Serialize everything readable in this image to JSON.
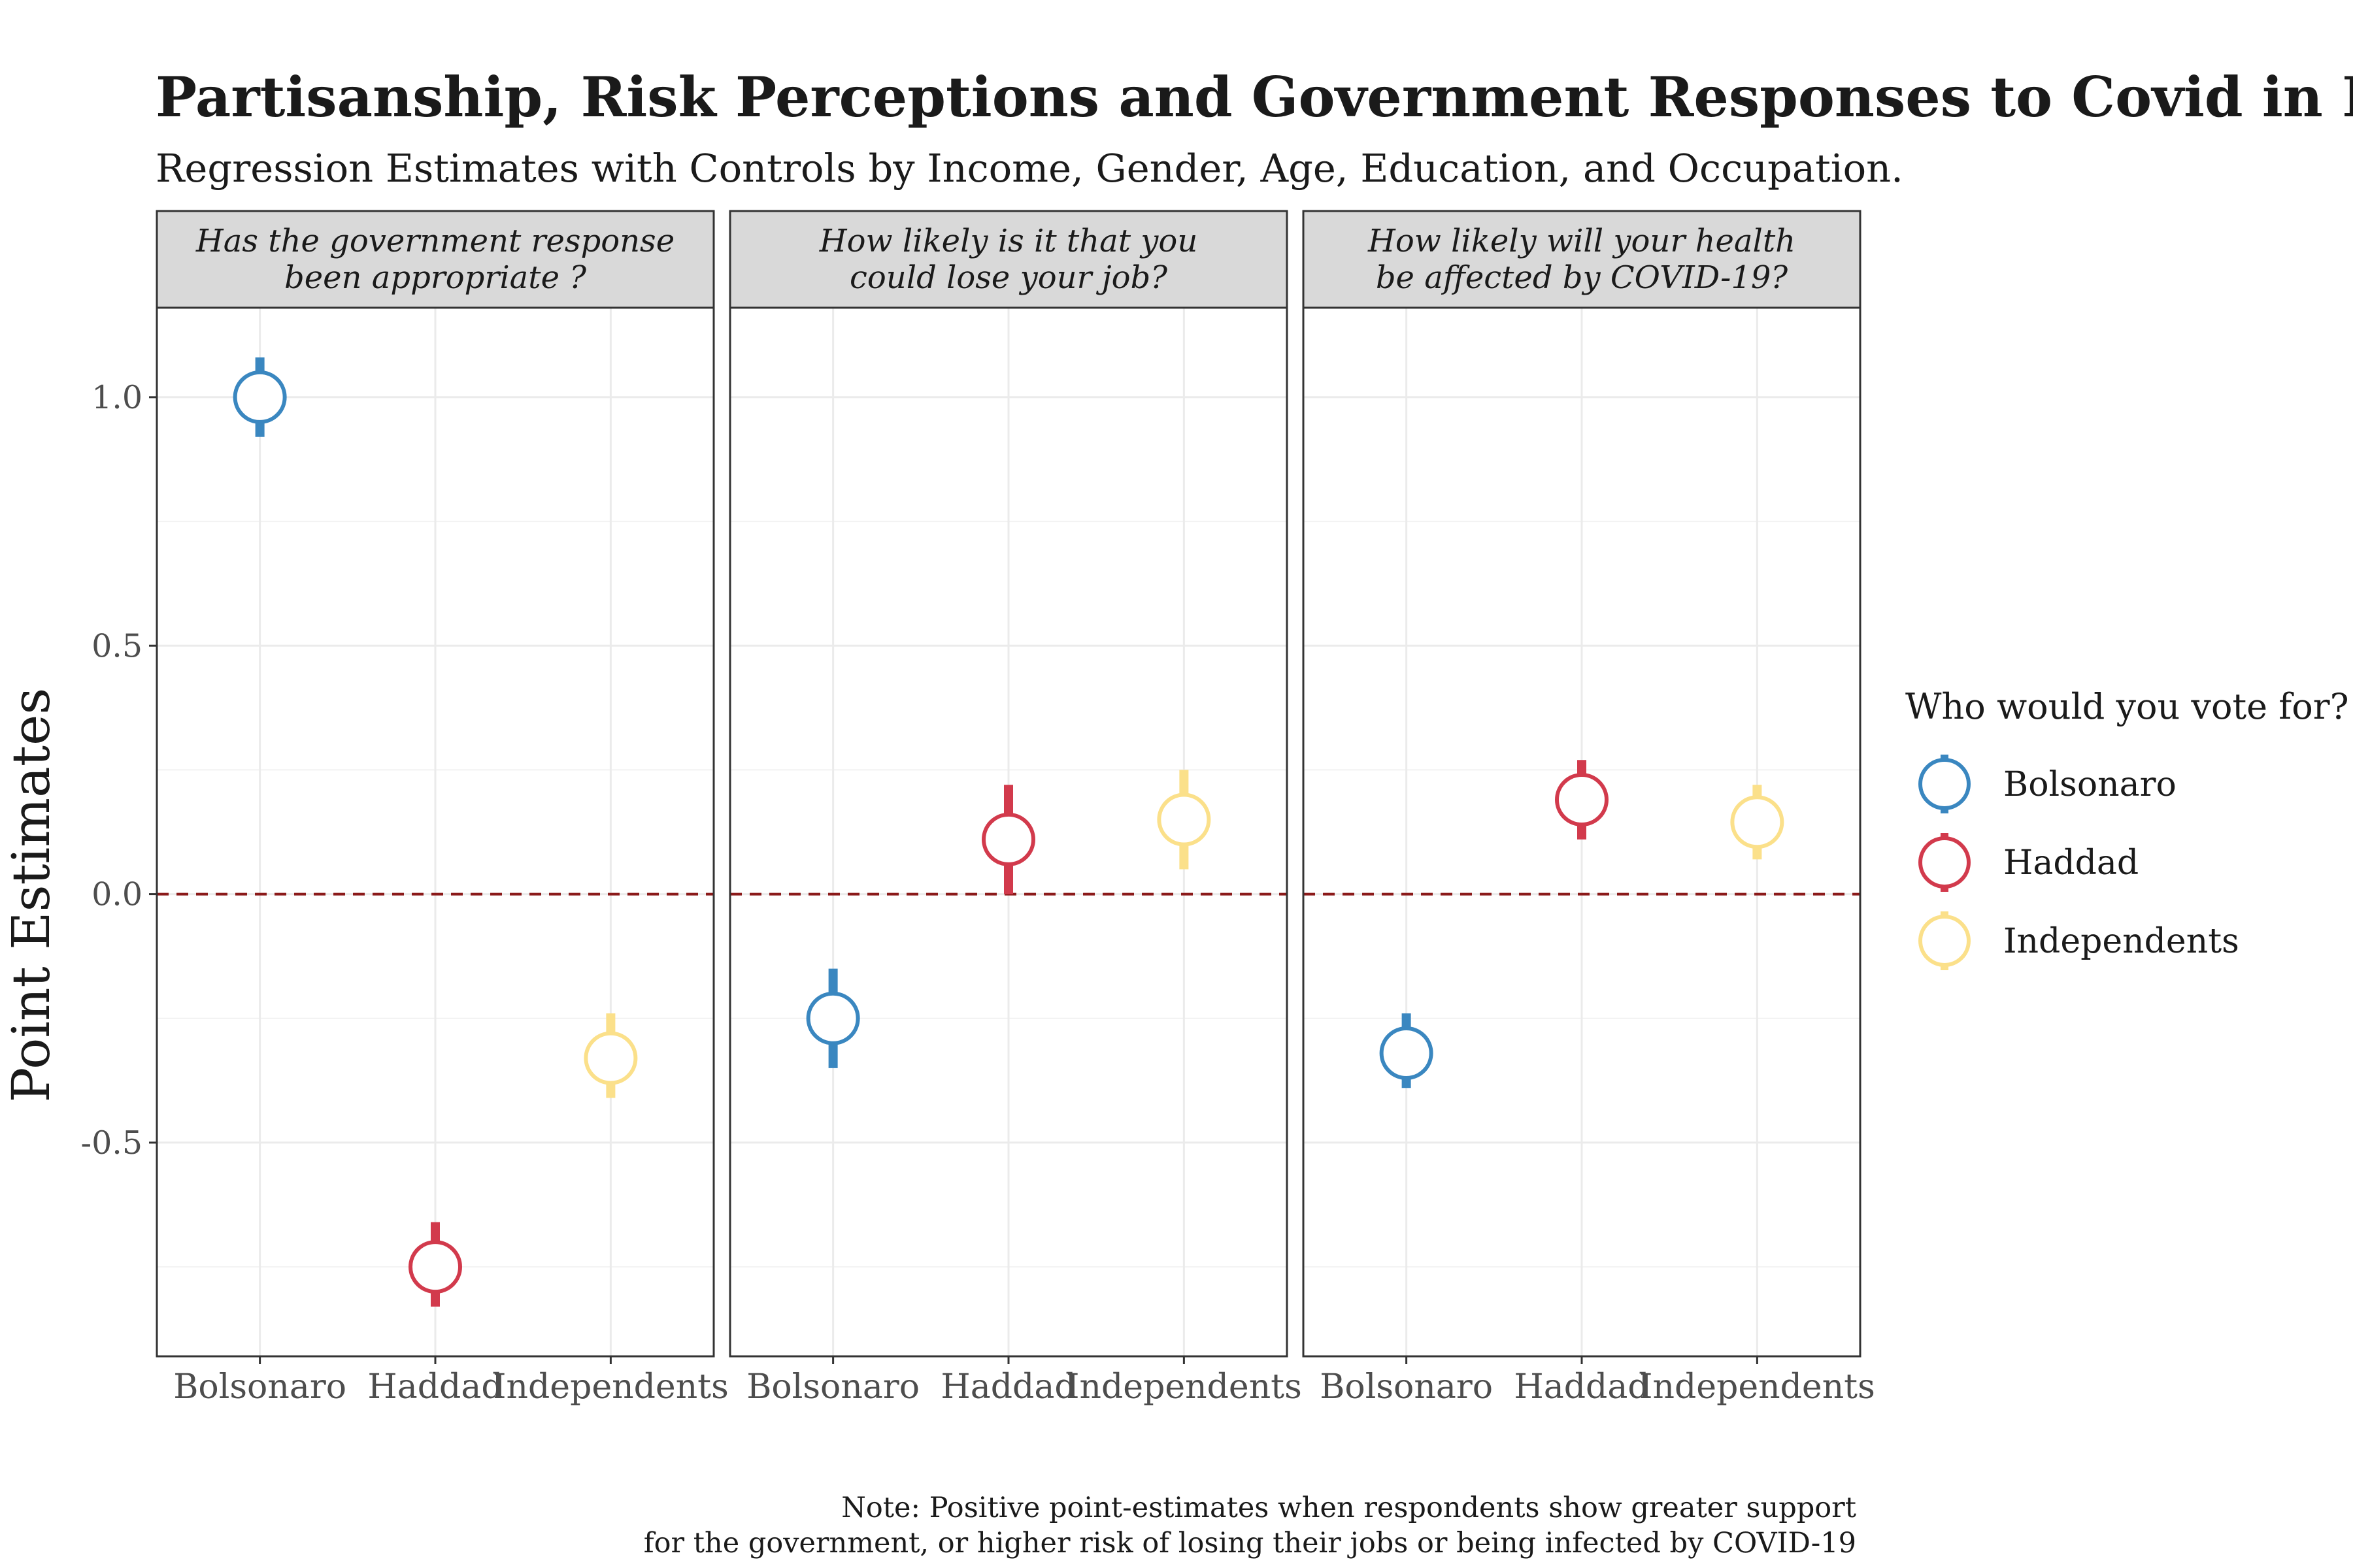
{
  "chart_data": {
    "type": "scatter",
    "title": "Partisanship, Risk Perceptions and Government Responses to Covid in Brazil",
    "subtitle": "Regression Estimates with Controls by Income, Gender, Age, Education, and Occupation.",
    "ylabel": "Point Estimates",
    "xlabel": "",
    "ylim": [
      -0.93,
      1.18
    ],
    "yticks": [
      {
        "value": 1.0,
        "label": "1.0"
      },
      {
        "value": 0.5,
        "label": "0.5"
      },
      {
        "value": 0.0,
        "label": "0.0"
      },
      {
        "value": -0.5,
        "label": "-0.5"
      }
    ],
    "categories": [
      "Bolsonaro",
      "Haddad",
      "Independents"
    ],
    "reference_line": {
      "y": 0,
      "style": "dashed",
      "color": "#8b1a1a"
    },
    "grid": true,
    "legend": {
      "title": "Who would you vote for?",
      "position": "right",
      "entries": [
        "Bolsonaro",
        "Haddad",
        "Independents"
      ]
    },
    "colors": {
      "Bolsonaro": "#3a87c0",
      "Haddad": "#d23a4c",
      "Independents": "#fbe08a"
    },
    "panels": [
      {
        "title_lines": [
          "Has the government response",
          "been appropriate ?"
        ],
        "points": [
          {
            "category": "Bolsonaro",
            "estimate": 1.0,
            "low": 0.92,
            "high": 1.08
          },
          {
            "category": "Haddad",
            "estimate": -0.75,
            "low": -0.83,
            "high": -0.66
          },
          {
            "category": "Independents",
            "estimate": -0.33,
            "low": -0.41,
            "high": -0.24
          }
        ]
      },
      {
        "title_lines": [
          "How likely is it that you",
          "could lose your job?"
        ],
        "points": [
          {
            "category": "Bolsonaro",
            "estimate": -0.25,
            "low": -0.35,
            "high": -0.15
          },
          {
            "category": "Haddad",
            "estimate": 0.11,
            "low": 0.0,
            "high": 0.22
          },
          {
            "category": "Independents",
            "estimate": 0.15,
            "low": 0.05,
            "high": 0.25
          }
        ]
      },
      {
        "title_lines": [
          "How likely will your health",
          "be affected by COVID-19?"
        ],
        "points": [
          {
            "category": "Bolsonaro",
            "estimate": -0.32,
            "low": -0.39,
            "high": -0.24
          },
          {
            "category": "Haddad",
            "estimate": 0.19,
            "low": 0.11,
            "high": 0.27
          },
          {
            "category": "Independents",
            "estimate": 0.145,
            "low": 0.07,
            "high": 0.22
          }
        ]
      }
    ]
  },
  "note_lines": [
    "Note: Positive point-estimates when respondents show greater support",
    "for the government, or higher risk of losing their jobs or being infected by COVID-19"
  ]
}
